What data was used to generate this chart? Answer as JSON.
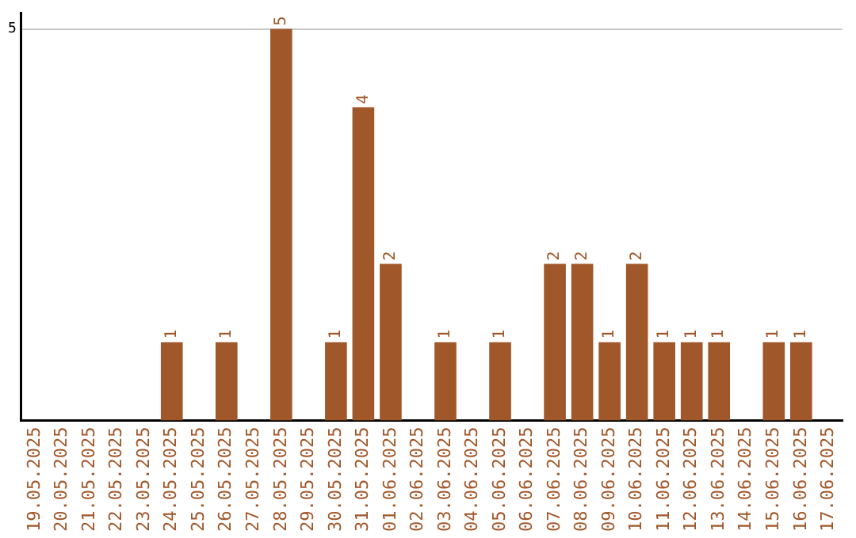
{
  "chart_data": {
    "type": "bar",
    "categories": [
      "19.05.2025",
      "20.05.2025",
      "21.05.2025",
      "22.05.2025",
      "23.05.2025",
      "24.05.2025",
      "25.05.2025",
      "26.05.2025",
      "27.05.2025",
      "28.05.2025",
      "29.05.2025",
      "30.05.2025",
      "31.05.2025",
      "01.06.2025",
      "02.06.2025",
      "03.06.2025",
      "04.06.2025",
      "05.06.2025",
      "06.06.2025",
      "07.06.2025",
      "08.06.2025",
      "09.06.2025",
      "10.06.2025",
      "11.06.2025",
      "12.06.2025",
      "13.06.2025",
      "14.06.2025",
      "15.06.2025",
      "16.06.2025",
      "17.06.2025"
    ],
    "values": [
      0,
      0,
      0,
      0,
      0,
      1,
      0,
      1,
      0,
      5,
      0,
      1,
      4,
      2,
      0,
      1,
      0,
      1,
      0,
      2,
      2,
      1,
      2,
      1,
      1,
      1,
      0,
      1,
      1,
      0
    ],
    "value_labels": [
      null,
      null,
      null,
      null,
      null,
      "1",
      null,
      "1",
      null,
      "5",
      null,
      "1",
      "4",
      "2",
      null,
      "1",
      null,
      "1",
      null,
      "2",
      "2",
      "1",
      "2",
      "1",
      "1",
      "1",
      null,
      "1",
      "1",
      null
    ],
    "color": "#a0572a",
    "ylim": [
      0,
      5.2
    ],
    "yticks": [
      5
    ],
    "grid": "y",
    "legend": false
  }
}
